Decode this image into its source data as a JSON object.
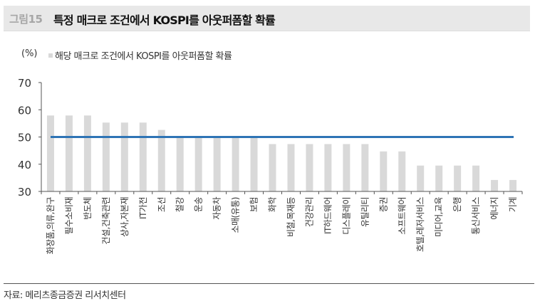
{
  "header": {
    "figure_no": "그림15",
    "title": "특정 매크로 조건에서 KOSPI를 아웃퍼폼할 확률"
  },
  "legend": {
    "unit": "(%)",
    "series_label": "해당 매크로 조건에서 KOSPI를 아웃퍼폼할 확률"
  },
  "footer": {
    "source": "자료: 메리츠종금증권 리서치센터"
  },
  "colors": {
    "bar": "#d9d9d9",
    "reference_line": "#2e74b5",
    "axis": "#555555"
  },
  "chart_data": {
    "type": "bar",
    "title": "특정 매크로 조건에서 KOSPI를 아웃퍼폼할 확률",
    "xlabel": "",
    "ylabel": "(%)",
    "ylim": [
      30,
      70
    ],
    "yticks": [
      30,
      40,
      50,
      60,
      70
    ],
    "grid": false,
    "legend_position": "top-left",
    "categories": [
      "화장품,의류,완구",
      "필수소비재",
      "반도체",
      "건설,건축관련",
      "상사,자본재",
      "IT가전",
      "조선",
      "철강",
      "운송",
      "자동차",
      "소매(유통)",
      "보험",
      "화학",
      "비철,목재등",
      "건강관리",
      "IT하드웨어",
      "디스플레이",
      "유틸리티",
      "증권",
      "소프트웨어",
      "호텔,레저서비스",
      "미디어,교육",
      "은행",
      "통신서비스",
      "에너지",
      "기계"
    ],
    "series": [
      {
        "name": "해당 매크로 조건에서 KOSPI를 아웃퍼폼할 확률",
        "values": [
          57.9,
          57.9,
          57.9,
          55.3,
          55.3,
          55.3,
          52.6,
          50.0,
          50.0,
          50.0,
          50.0,
          50.0,
          47.4,
          47.4,
          47.4,
          47.4,
          47.4,
          47.4,
          44.7,
          44.7,
          39.5,
          39.5,
          39.5,
          39.5,
          34.2,
          34.2
        ]
      }
    ],
    "reference_line": {
      "y": 50,
      "color": "#2e74b5"
    }
  }
}
